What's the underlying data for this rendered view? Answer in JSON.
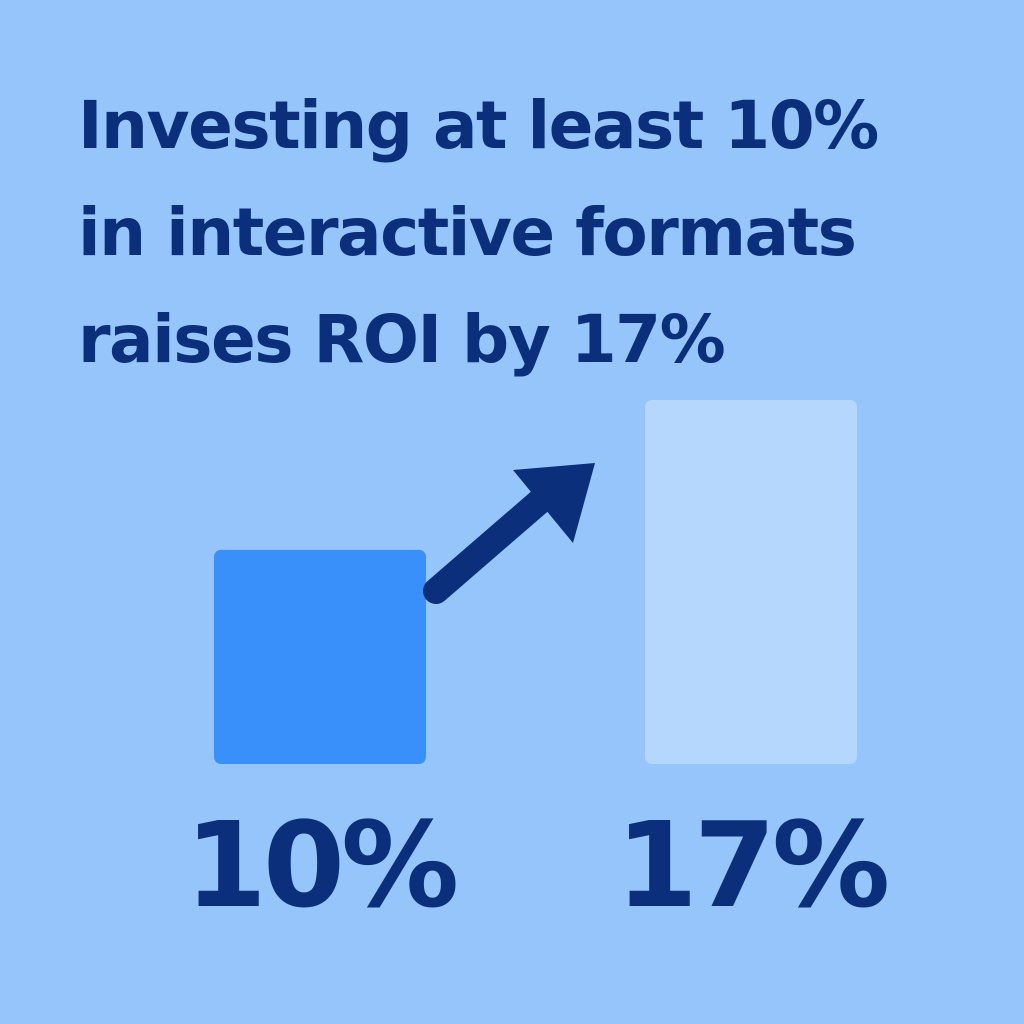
{
  "title_lines": [
    "Investing at least 10%",
    "in interactive formats",
    "raises ROI by 17%"
  ],
  "colors": {
    "background": "#95c5fb",
    "text": "#0b2f7b",
    "bar_before": "#3990fa",
    "bar_after": "#b6d7fd",
    "arrow": "#0b2f7b"
  },
  "arrow_icon": "arrow-up-right-icon",
  "chart_data": {
    "type": "bar",
    "categories": [
      "10%",
      "17%"
    ],
    "values": [
      10,
      17
    ],
    "title": "Investing at least 10% in interactive formats raises ROI by 17%",
    "data_labels": [
      "10%",
      "17%"
    ],
    "xlabel": "",
    "ylabel": "",
    "ylim": [
      0,
      17
    ],
    "grid": false,
    "legend": "none",
    "annotations": [
      "arrow-up-right"
    ]
  }
}
